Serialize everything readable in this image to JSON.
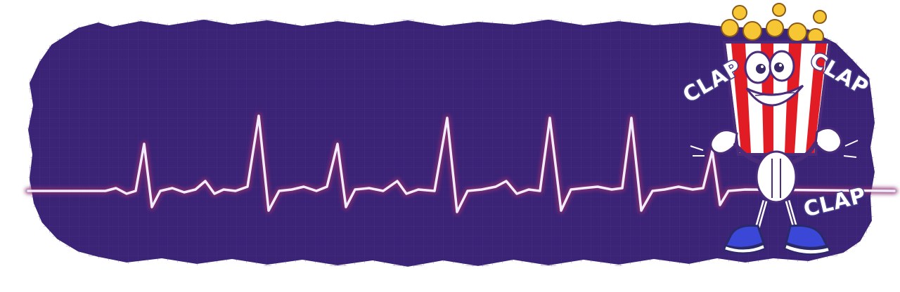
{
  "banner": {
    "background_color": "#3b2476",
    "grid_color": "#4a3490",
    "edge_color": "#ffffff",
    "line_color": "#f1ecff",
    "line_glow_color": "#8a2f6e"
  },
  "mascot": {
    "name": "popcorn-bucket-mascot",
    "stripe_red": "#e21c25",
    "stripe_white": "#ffffff",
    "popcorn_color": "#f6c634",
    "shoe_color": "#3b47d6",
    "clap_words": [
      "CLAP",
      "CLAP",
      "CLAP"
    ]
  }
}
